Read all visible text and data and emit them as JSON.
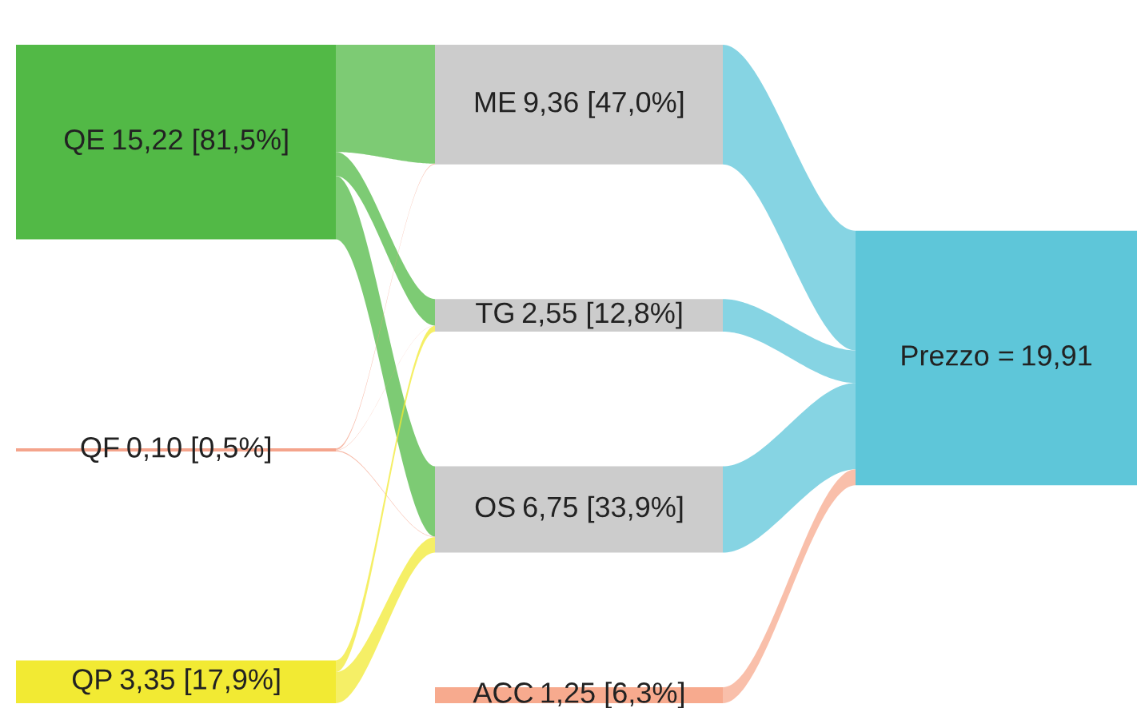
{
  "chart_data": {
    "type": "other",
    "categories": [
      "QE",
      "QF",
      "QP",
      "ME",
      "TG",
      "OS",
      "ACC",
      "Prezzo ="
    ],
    "value_labels": [
      "15,22 [81,5%]",
      "0,10 [0,5%]",
      "3,35 [17,9%]",
      "9,36 [47,0%]",
      "2,55 [12,8%]",
      "6,75 [33,9%]",
      "1,25 [6,3%]",
      "19,91"
    ],
    "values": [
      15.22,
      0.1,
      3.35,
      9.36,
      2.55,
      6.75,
      1.25,
      19.91
    ],
    "colors": [
      "#52b946",
      "#f4a48c",
      "#f2ea33",
      "#cccccc",
      "#cccccc",
      "#cccccc",
      "#f7aa8e",
      "#5ec6d9"
    ]
  }
}
